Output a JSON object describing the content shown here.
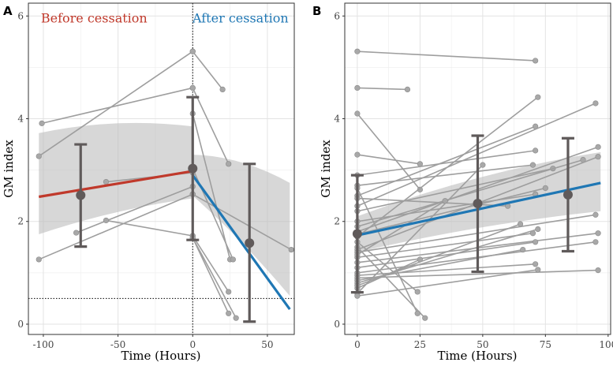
{
  "chart_data": [
    {
      "panel_label": "A",
      "type": "line",
      "xlabel": "Time (Hours)",
      "ylabel": "GM index",
      "xlim": [
        -110,
        68
      ],
      "ylim": [
        -0.2,
        6.25
      ],
      "x_ticks": [
        -100,
        -50,
        0,
        50
      ],
      "x_tick_labels": [
        "-100",
        "-50",
        "0",
        "50"
      ],
      "y_ticks": [
        0,
        2,
        4,
        6
      ],
      "y_tick_labels": [
        "0",
        "2",
        "4",
        "6"
      ],
      "grid": true,
      "annotations": [
        {
          "text": "Before cessation",
          "color": "#c0392b",
          "x": -66,
          "y": 5.95
        },
        {
          "text": "After cessation",
          "color": "#1f77b4",
          "x": 32,
          "y": 5.95
        }
      ],
      "reference_lines": [
        {
          "orientation": "vertical",
          "value": 0,
          "style": "dotted"
        },
        {
          "orientation": "horizontal",
          "value": 0.5,
          "style": "dotted"
        }
      ],
      "subject_trajectories": [
        [
          [
            -101,
            3.91
          ],
          [
            0,
            4.6
          ]
        ],
        [
          [
            -103,
            3.27
          ],
          [
            0,
            5.31
          ]
        ],
        [
          [
            -103,
            1.26
          ],
          [
            0,
            2.53
          ]
        ],
        [
          [
            -78,
            1.78
          ],
          [
            0,
            2.68
          ]
        ],
        [
          [
            -58,
            2.77
          ],
          [
            0,
            2.95
          ]
        ],
        [
          [
            -58,
            2.02
          ],
          [
            0,
            1.72
          ]
        ],
        [
          [
            0,
            5.31
          ],
          [
            20,
            4.57
          ]
        ],
        [
          [
            0,
            4.6
          ],
          [
            24,
            3.12
          ]
        ],
        [
          [
            0,
            4.1
          ],
          [
            25,
            1.26
          ]
        ],
        [
          [
            0,
            3.03
          ],
          [
            27,
            1.26
          ]
        ],
        [
          [
            0,
            1.72
          ],
          [
            24,
            0.63
          ]
        ],
        [
          [
            0,
            1.68
          ],
          [
            29,
            0.12
          ]
        ],
        [
          [
            0,
            1.68
          ],
          [
            24,
            0.21
          ]
        ],
        [
          [
            0,
            2.53
          ],
          [
            66,
            1.45
          ]
        ]
      ],
      "fit_before": {
        "x": [
          -103,
          0
        ],
        "y": [
          2.48,
          2.98
        ],
        "ci_lower": [
          1.75,
          2.45
        ],
        "ci_upper": [
          3.72,
          3.85
        ],
        "color": "#c0392b"
      },
      "fit_after": {
        "x": [
          0,
          65
        ],
        "y": [
          2.9,
          0.29
        ],
        "ci_lower": [
          2.5,
          0.55
        ],
        "ci_upper": [
          3.3,
          2.75
        ],
        "color": "#1f77b4"
      },
      "group_means": [
        {
          "x": -75,
          "mean": 2.51,
          "lower": 1.51,
          "upper": 3.5
        },
        {
          "x": 0,
          "mean": 3.03,
          "lower": 1.64,
          "upper": 4.42
        },
        {
          "x": 38,
          "mean": 1.58,
          "lower": 0.05,
          "upper": 3.12
        }
      ]
    },
    {
      "panel_label": "B",
      "type": "line",
      "xlabel": "Time (Hours)",
      "ylabel": "GM index",
      "xlim": [
        -5,
        101
      ],
      "ylim": [
        -0.2,
        6.25
      ],
      "x_ticks": [
        0,
        25,
        50,
        75,
        100
      ],
      "x_tick_labels": [
        "0",
        "25",
        "50",
        "75",
        "100"
      ],
      "y_ticks": [
        0,
        2,
        4,
        6
      ],
      "y_tick_labels": [
        "0",
        "2",
        "4",
        "6"
      ],
      "grid": true,
      "subject_trajectories": [
        [
          [
            0,
            5.31
          ],
          [
            71,
            5.13
          ]
        ],
        [
          [
            0,
            4.6
          ],
          [
            20,
            4.57
          ]
        ],
        [
          [
            0,
            4.1
          ],
          [
            25,
            2.62
          ]
        ],
        [
          [
            0,
            3.3
          ],
          [
            25,
            3.12
          ]
        ],
        [
          [
            0,
            2.9
          ],
          [
            71,
            3.38
          ]
        ],
        [
          [
            0,
            2.7
          ],
          [
            70,
            3.1
          ]
        ],
        [
          [
            0,
            2.5
          ],
          [
            71,
            3.85
          ]
        ],
        [
          [
            0,
            2.3
          ],
          [
            95,
            4.3
          ]
        ],
        [
          [
            0,
            2.2
          ],
          [
            78,
            3.03
          ]
        ],
        [
          [
            0,
            2.0
          ],
          [
            71,
            2.53
          ]
        ],
        [
          [
            0,
            1.9
          ],
          [
            90,
            3.2
          ]
        ],
        [
          [
            0,
            1.8
          ],
          [
            96,
            3.45
          ]
        ],
        [
          [
            0,
            1.7
          ],
          [
            72,
            4.42
          ]
        ],
        [
          [
            0,
            1.6
          ],
          [
            24,
            0.63
          ]
        ],
        [
          [
            0,
            1.5
          ],
          [
            27,
            0.12
          ]
        ],
        [
          [
            0,
            1.45
          ],
          [
            96,
            3.26
          ]
        ],
        [
          [
            0,
            1.4
          ],
          [
            95,
            2.13
          ]
        ],
        [
          [
            0,
            1.3
          ],
          [
            70,
            1.77
          ]
        ],
        [
          [
            0,
            1.2
          ],
          [
            96,
            1.77
          ]
        ],
        [
          [
            0,
            1.1
          ],
          [
            71,
            1.6
          ]
        ],
        [
          [
            0,
            1.0
          ],
          [
            95,
            1.6
          ]
        ],
        [
          [
            0,
            0.95
          ],
          [
            71,
            1.17
          ]
        ],
        [
          [
            0,
            0.9
          ],
          [
            96,
            1.05
          ]
        ],
        [
          [
            0,
            0.85
          ],
          [
            66,
            1.45
          ]
        ],
        [
          [
            0,
            0.8
          ],
          [
            72,
            1.85
          ]
        ],
        [
          [
            0,
            0.7
          ],
          [
            25,
            1.26
          ]
        ],
        [
          [
            0,
            0.6
          ],
          [
            50,
            3.1
          ]
        ],
        [
          [
            0,
            0.55
          ],
          [
            72,
            1.06
          ]
        ],
        [
          [
            0,
            2.65
          ],
          [
            24,
            0.21
          ]
        ],
        [
          [
            0,
            2.45
          ],
          [
            60,
            2.3
          ]
        ],
        [
          [
            0,
            1.75
          ],
          [
            75,
            2.65
          ]
        ],
        [
          [
            0,
            1.35
          ],
          [
            35,
            2.4
          ]
        ],
        [
          [
            0,
            0.75
          ],
          [
            65,
            1.95
          ]
        ]
      ],
      "fit": {
        "x": [
          0,
          97
        ],
        "y": [
          1.73,
          2.75
        ],
        "ci_lower": [
          1.4,
          2.2
        ],
        "ci_upper": [
          2.1,
          3.35
        ],
        "color": "#1f77b4"
      },
      "group_means": [
        {
          "x": 0,
          "mean": 1.76,
          "lower": 0.62,
          "upper": 2.9
        },
        {
          "x": 48,
          "mean": 2.35,
          "lower": 1.02,
          "upper": 3.67
        },
        {
          "x": 84,
          "mean": 2.52,
          "lower": 1.42,
          "upper": 3.62
        }
      ]
    }
  ]
}
